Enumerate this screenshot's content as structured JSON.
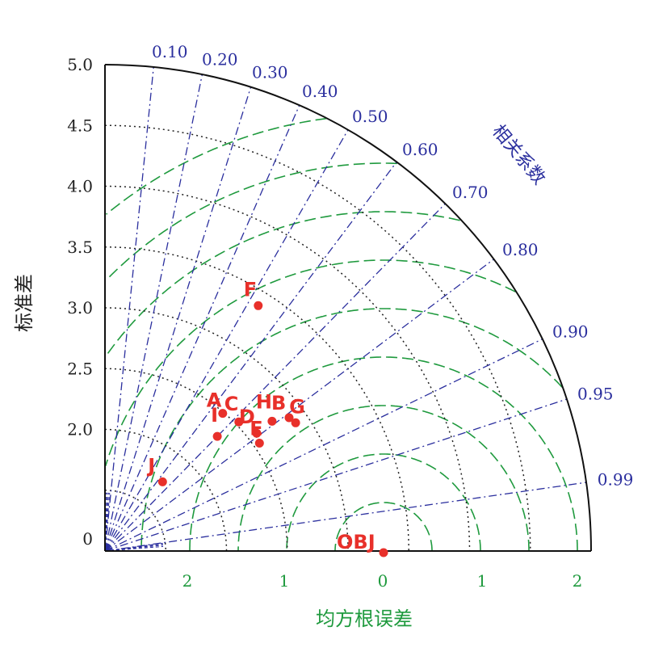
{
  "chart_data": {
    "type": "scatter",
    "title": "",
    "xlabel": "均方根误差",
    "ylabel": "标准差",
    "corr_label": "相关系数",
    "std_ticks": [
      "0",
      "2.0",
      "2.5",
      "3.0",
      "3.5",
      "4.0",
      "4.5",
      "5.0"
    ],
    "corr_ticks": [
      "0.10",
      "0.20",
      "0.30",
      "0.40",
      "0.50",
      "0.60",
      "0.70",
      "0.80",
      "0.90",
      "0.95",
      "0.99"
    ],
    "rms_ticks": [
      "2",
      "1",
      "0",
      "1",
      "2"
    ],
    "points": [
      {
        "name": "A",
        "std": 2.49,
        "corr": 0.65
      },
      {
        "name": "I",
        "std": 2.32,
        "corr": 0.7
      },
      {
        "name": "C",
        "std": 2.53,
        "corr": 0.72
      },
      {
        "name": "D",
        "std": 2.58,
        "corr": 0.79
      },
      {
        "name": "H",
        "std": 2.74,
        "corr": 0.79
      },
      {
        "name": "E",
        "std": 2.55,
        "corr": 0.82
      },
      {
        "name": "B",
        "std": 2.87,
        "corr": 0.81
      },
      {
        "name": "G",
        "std": 2.89,
        "corr": 0.83
      },
      {
        "name": "F",
        "std": 3.38,
        "corr": 0.53
      },
      {
        "name": "J",
        "std": 1.74,
        "corr": 0.64
      },
      {
        "name": "OBJ",
        "std": 1.45,
        "corr": 1.0
      }
    ],
    "colors": {
      "points": "#e8302a",
      "std_arcs": "#222222",
      "corr_lines": "#2b2f9e",
      "rms_arcs": "#1f9a3e",
      "outline": "#111111"
    }
  }
}
